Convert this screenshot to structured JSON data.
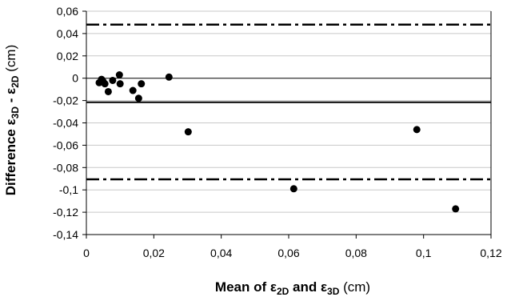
{
  "chart_data": {
    "type": "scatter",
    "xlabel": {
      "prefix": "Mean of ",
      "sym1": "ε",
      "sub1": "2D",
      "mid": " and ",
      "sym2": "ε",
      "sub2": "3D",
      "unit": " (cm)"
    },
    "ylabel": {
      "prefix": "Difference ",
      "sym1": "ε",
      "sub1": "3D",
      "mid": " - ",
      "sym2": "ε",
      "sub2": "2D",
      "unit": " (cm)"
    },
    "xlim": [
      0,
      0.12
    ],
    "ylim": [
      -0.14,
      0.06
    ],
    "x_ticks": [
      0,
      0.02,
      0.04,
      0.06,
      0.08,
      0.1,
      0.12
    ],
    "x_tick_labels": [
      "0",
      "0,02",
      "0,04",
      "0,06",
      "0,08",
      "0,1",
      "0,12"
    ],
    "y_ticks": [
      0.06,
      0.04,
      0.02,
      0,
      -0.02,
      -0.04,
      -0.06,
      -0.08,
      -0.1,
      -0.12,
      -0.14
    ],
    "y_tick_labels": [
      "0,06",
      "0,04",
      "0,02",
      "0",
      "-0,02",
      "-0,04",
      "-0,06",
      "-0,08",
      "-0,1",
      "-0,12",
      "-0,14"
    ],
    "grid": {
      "horizontal": true,
      "vertical": false
    },
    "reference_lines": [
      {
        "kind": "mean",
        "y": -0.0215,
        "style": "solid"
      },
      {
        "kind": "upper-limit",
        "y": 0.048,
        "style": "dash-dot"
      },
      {
        "kind": "lower-limit",
        "y": -0.0905,
        "style": "dash-dot"
      }
    ],
    "points": [
      {
        "x": 0.0038,
        "y": -0.004
      },
      {
        "x": 0.0045,
        "y": -0.001
      },
      {
        "x": 0.005,
        "y": -0.003
      },
      {
        "x": 0.0055,
        "y": -0.005
      },
      {
        "x": 0.0065,
        "y": -0.012
      },
      {
        "x": 0.0078,
        "y": -0.002
      },
      {
        "x": 0.0098,
        "y": 0.003
      },
      {
        "x": 0.01,
        "y": -0.005
      },
      {
        "x": 0.0138,
        "y": -0.011
      },
      {
        "x": 0.0155,
        "y": -0.018
      },
      {
        "x": 0.0163,
        "y": -0.005
      },
      {
        "x": 0.0245,
        "y": 0.001
      },
      {
        "x": 0.0302,
        "y": -0.048
      },
      {
        "x": 0.0615,
        "y": -0.099
      },
      {
        "x": 0.098,
        "y": -0.046
      },
      {
        "x": 0.1095,
        "y": -0.117
      }
    ],
    "colors": {
      "points": "#000000",
      "lines": "#000000",
      "grid": "#c8c8c8"
    }
  }
}
